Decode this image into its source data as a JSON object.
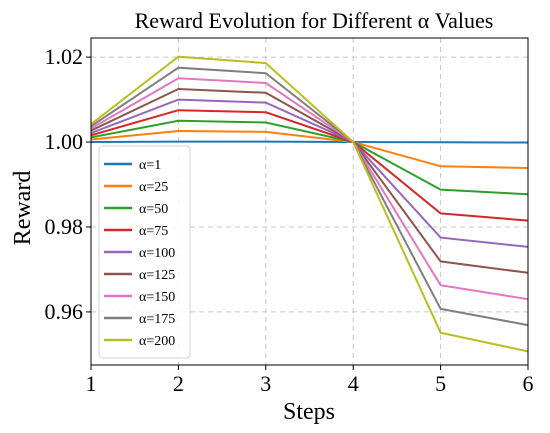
{
  "chart_data": {
    "type": "line",
    "title": "Reward Evolution for Different α Values",
    "xlabel": "Steps",
    "ylabel": "Reward",
    "x": [
      1,
      2,
      3,
      4,
      5,
      6
    ],
    "xticks": [
      "1",
      "2",
      "3",
      "4",
      "5",
      "6"
    ],
    "yticks": [
      "0.96",
      "0.98",
      "1.00",
      "1.02"
    ],
    "xlim": [
      1,
      6
    ],
    "ylim": [
      0.9475,
      1.0245
    ],
    "grid": true,
    "legend_position": "left",
    "series": [
      {
        "name": "α=1",
        "color": "#1f77b4",
        "values": [
          1.0,
          1.0001,
          1.0001,
          1.0,
          0.99995,
          0.9999
        ]
      },
      {
        "name": "α=25",
        "color": "#ff7f0e",
        "values": [
          1.0006,
          1.0026,
          1.0024,
          1.0,
          0.9943,
          0.9939
        ]
      },
      {
        "name": "α=50",
        "color": "#2ca02c",
        "values": [
          1.0011,
          1.005,
          1.0046,
          1.0,
          0.9888,
          0.9877
        ]
      },
      {
        "name": "α=75",
        "color": "#d62728",
        "values": [
          1.0016,
          1.0075,
          1.007,
          1.0,
          0.9832,
          0.9815
        ]
      },
      {
        "name": "α=100",
        "color": "#9467bd",
        "values": [
          1.0021,
          1.01,
          1.0093,
          1.0,
          0.9775,
          0.9753
        ]
      },
      {
        "name": "α=125",
        "color": "#8c564b",
        "values": [
          1.0027,
          1.0125,
          1.0116,
          1.0,
          0.9719,
          0.9692
        ]
      },
      {
        "name": "α=150",
        "color": "#e377c2",
        "values": [
          1.0032,
          1.015,
          1.0139,
          1.0,
          0.9663,
          0.963
        ]
      },
      {
        "name": "α=175",
        "color": "#7f7f7f",
        "values": [
          1.0037,
          1.0175,
          1.0162,
          1.0,
          0.9607,
          0.9569
        ]
      },
      {
        "name": "α=200",
        "color": "#bcbd22",
        "values": [
          1.0042,
          1.0201,
          1.0186,
          1.0,
          0.9551,
          0.9507
        ]
      }
    ]
  }
}
